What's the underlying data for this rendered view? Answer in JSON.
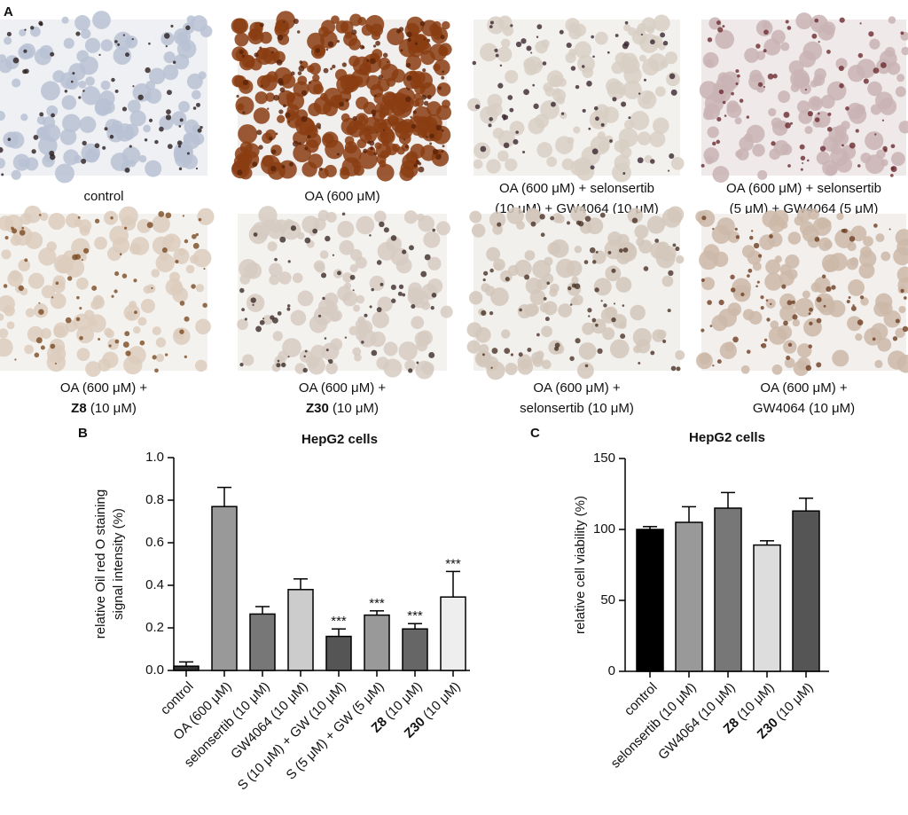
{
  "panel_a": {
    "label": "A",
    "captions": [
      [
        [
          {
            "text": "control"
          }
        ]
      ],
      [
        [
          {
            "text": "OA (600 μM)"
          }
        ]
      ],
      [
        [
          {
            "text": "OA (600 μM) + selonsertib"
          }
        ],
        [
          {
            "text": "(10 μM) + GW4064 (10 μM)"
          }
        ]
      ],
      [
        [
          {
            "text": "OA (600 μM) + selonsertib"
          }
        ],
        [
          {
            "text": "(5 μM) + GW4064 (5 μM)"
          }
        ]
      ],
      [
        [
          {
            "text": "OA (600 μM) +"
          }
        ],
        [
          {
            "text": "Z8",
            "bold": true
          },
          {
            "text": " (10 μM)"
          }
        ]
      ],
      [
        [
          {
            "text": "OA (600 μM) +"
          }
        ],
        [
          {
            "text": "Z30",
            "bold": true
          },
          {
            "text": " (10 μM)"
          }
        ]
      ],
      [
        [
          {
            "text": "OA (600 μM) +"
          }
        ],
        [
          {
            "text": "selonsertib (10 μM)"
          }
        ]
      ],
      [
        [
          {
            "text": "OA (600 μM) +"
          }
        ],
        [
          {
            "text": "GW4064 (10 μM)"
          }
        ]
      ]
    ]
  },
  "chart_data": [
    {
      "type": "bar",
      "panel": "B",
      "title": "HepG2 cells",
      "ylabel": [
        "relative Oil red O staining",
        "signal intensity (%)"
      ],
      "categories": [
        "control",
        "OA (600 μM)",
        "selonsertib (10 μM)",
        "GW4064 (10 μM)",
        "S (10 μM) + GW (10 μM)",
        "S (5 μM) + GW (5 μM)",
        "Z8 (10 μM)",
        "Z30 (10 μM)"
      ],
      "category_bold_first_word": [
        false,
        false,
        false,
        false,
        false,
        false,
        true,
        true
      ],
      "values": [
        0.02,
        0.77,
        0.265,
        0.38,
        0.16,
        0.26,
        0.195,
        0.345
      ],
      "errors": [
        0.02,
        0.09,
        0.035,
        0.05,
        0.035,
        0.02,
        0.025,
        0.12
      ],
      "value_annotations": [
        null,
        null,
        null,
        null,
        "***",
        "***",
        "***",
        "***"
      ],
      "colors": [
        "#333333",
        "#999999",
        "#777777",
        "#cccccc",
        "#555555",
        "#999999",
        "#666666",
        "#eeeeee"
      ],
      "ylim": [
        0,
        1
      ],
      "yticks": [
        {
          "value": 0,
          "label": "0.0"
        },
        0.2,
        0.4,
        0.6,
        0.8,
        {
          "value": 1,
          "label": "1.0"
        }
      ]
    },
    {
      "type": "bar",
      "panel": "C",
      "title": "HepG2 cells",
      "ylabel": [
        "relative cell viability (%)"
      ],
      "categories": [
        "control",
        "selonsertib (10 μM)",
        "GW4064 (10 μM)",
        "Z8 (10 μM)",
        "Z30 (10 μM)"
      ],
      "category_bold_first_word": [
        false,
        false,
        false,
        true,
        true
      ],
      "values": [
        100,
        105,
        115,
        89,
        113
      ],
      "errors": [
        2,
        11,
        11,
        3,
        9
      ],
      "colors": [
        "#000000",
        "#999999",
        "#777777",
        "#dddddd",
        "#555555"
      ],
      "ylim": [
        0,
        150
      ],
      "yticks": [
        0,
        50,
        100,
        150
      ]
    }
  ]
}
